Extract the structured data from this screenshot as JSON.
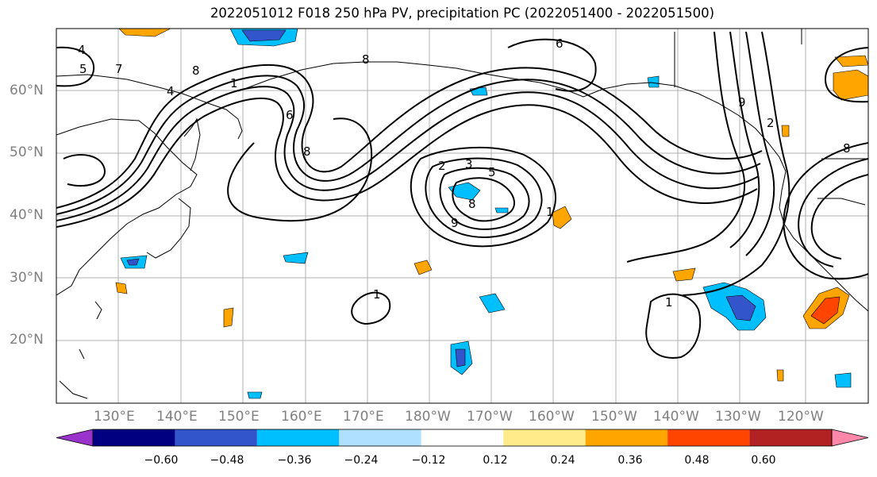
{
  "title": "2022051012 F018 250 hPa PV, precipitation PC (2022051400 - 2022051500)",
  "lat_labels": [
    "60°N",
    "50°N",
    "40°N",
    "30°N",
    "20°N"
  ],
  "lon_labels": [
    "130°E",
    "140°E",
    "150°E",
    "160°E",
    "170°E",
    "180°W",
    "170°W",
    "160°W",
    "150°W",
    "140°W",
    "130°W",
    "120°W"
  ],
  "colorbar": {
    "ticks": [
      "−0.60",
      "−0.48",
      "−0.36",
      "−0.24",
      "−0.12",
      "0.12",
      "0.24",
      "0.36",
      "0.48",
      "0.60"
    ],
    "colors": [
      "#9933cc",
      "#000080",
      "#3355cc",
      "#00bfff",
      "#b0e0ff",
      "#ffffff",
      "#ffeb8a",
      "#ffa500",
      "#ff4500",
      "#b22222",
      "#ff88aa"
    ]
  },
  "contour_labels": [
    "1",
    "2",
    "3",
    "4",
    "5",
    "6",
    "7",
    "8",
    "9"
  ]
}
